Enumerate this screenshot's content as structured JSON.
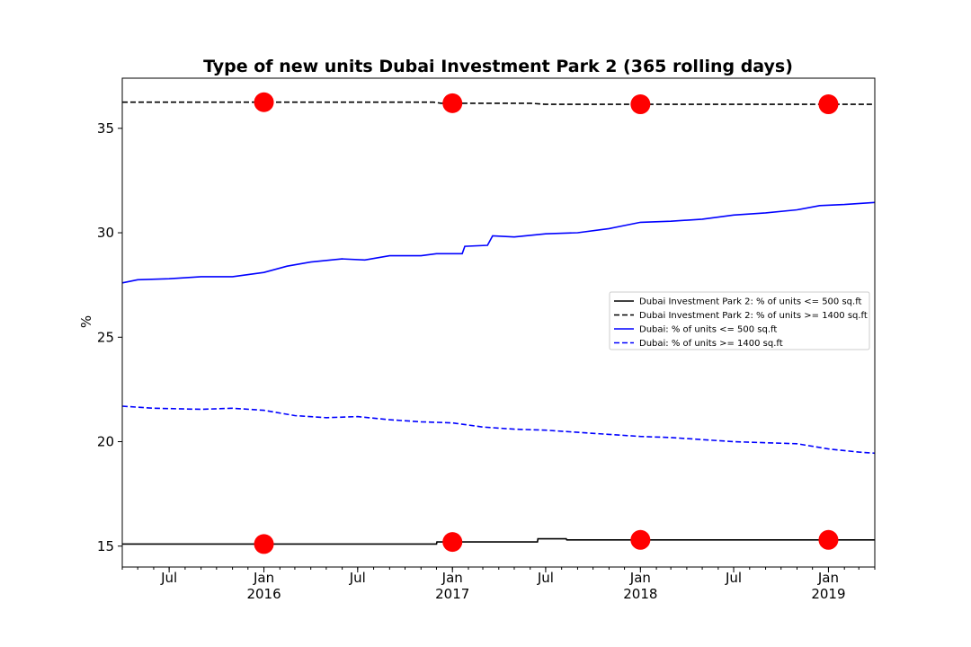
{
  "chart_data": {
    "type": "line",
    "title": "Type of new units Dubai Investment Park 2 (365 rolling days)",
    "xlabel": "",
    "ylabel": "%",
    "xlim": [
      "2015-04-01",
      "2019-04-01"
    ],
    "ylim": [
      14.0,
      37.4
    ],
    "yticks": [
      15,
      20,
      25,
      30,
      35
    ],
    "xticks": [
      {
        "date": "2015-07-01",
        "label": "Jul",
        "sublabel": ""
      },
      {
        "date": "2016-01-01",
        "label": "Jan",
        "sublabel": "2016"
      },
      {
        "date": "2016-07-01",
        "label": "Jul",
        "sublabel": ""
      },
      {
        "date": "2017-01-01",
        "label": "Jan",
        "sublabel": "2017"
      },
      {
        "date": "2017-07-01",
        "label": "Jul",
        "sublabel": ""
      },
      {
        "date": "2018-01-01",
        "label": "Jan",
        "sublabel": "2018"
      },
      {
        "date": "2018-07-01",
        "label": "Jul",
        "sublabel": ""
      },
      {
        "date": "2019-01-01",
        "label": "Jan",
        "sublabel": "2019"
      }
    ],
    "grid": false,
    "legend_position": "center-right",
    "series": [
      {
        "name": "Dubai Investment Park 2: % of units <= 500 sq.ft",
        "color": "#000000",
        "style": "solid",
        "points": [
          [
            "2015-04-01",
            15.1
          ],
          [
            "2016-12-01",
            15.1
          ],
          [
            "2016-12-02",
            15.2
          ],
          [
            "2017-06-15",
            15.2
          ],
          [
            "2017-06-16",
            15.35
          ],
          [
            "2017-08-10",
            15.35
          ],
          [
            "2017-08-11",
            15.3
          ],
          [
            "2019-04-01",
            15.3
          ]
        ]
      },
      {
        "name": "Dubai Investment Park 2: % of units >= 1400 sq.ft",
        "color": "#000000",
        "style": "dashed",
        "points": [
          [
            "2015-04-01",
            36.25
          ],
          [
            "2016-11-25",
            36.25
          ],
          [
            "2016-12-10",
            36.2
          ],
          [
            "2017-06-01",
            36.2
          ],
          [
            "2017-07-01",
            36.15
          ],
          [
            "2019-04-01",
            36.15
          ]
        ]
      },
      {
        "name": "Dubai: % of units <= 500 sq.ft",
        "color": "#0000ff",
        "style": "solid",
        "points": [
          [
            "2015-04-01",
            27.6
          ],
          [
            "2015-05-01",
            27.75
          ],
          [
            "2015-07-01",
            27.8
          ],
          [
            "2015-09-01",
            27.9
          ],
          [
            "2015-11-01",
            27.9
          ],
          [
            "2016-01-01",
            28.1
          ],
          [
            "2016-02-15",
            28.4
          ],
          [
            "2016-04-01",
            28.6
          ],
          [
            "2016-06-01",
            28.75
          ],
          [
            "2016-07-15",
            28.7
          ],
          [
            "2016-09-01",
            28.9
          ],
          [
            "2016-11-01",
            28.9
          ],
          [
            "2016-12-01",
            29.0
          ],
          [
            "2017-01-20",
            29.0
          ],
          [
            "2017-01-25",
            29.35
          ],
          [
            "2017-03-10",
            29.4
          ],
          [
            "2017-03-20",
            29.85
          ],
          [
            "2017-05-01",
            29.8
          ],
          [
            "2017-07-01",
            29.95
          ],
          [
            "2017-09-01",
            30.0
          ],
          [
            "2017-11-01",
            30.2
          ],
          [
            "2018-01-01",
            30.5
          ],
          [
            "2018-03-01",
            30.55
          ],
          [
            "2018-05-01",
            30.65
          ],
          [
            "2018-07-01",
            30.85
          ],
          [
            "2018-09-01",
            30.95
          ],
          [
            "2018-11-01",
            31.1
          ],
          [
            "2018-12-15",
            31.3
          ],
          [
            "2019-02-01",
            31.35
          ],
          [
            "2019-04-01",
            31.45
          ]
        ]
      },
      {
        "name": "Dubai: % of units >= 1400 sq.ft",
        "color": "#0000ff",
        "style": "dashed",
        "points": [
          [
            "2015-04-01",
            21.7
          ],
          [
            "2015-06-01",
            21.6
          ],
          [
            "2015-09-01",
            21.55
          ],
          [
            "2015-11-01",
            21.6
          ],
          [
            "2016-01-01",
            21.5
          ],
          [
            "2016-03-01",
            21.25
          ],
          [
            "2016-05-01",
            21.15
          ],
          [
            "2016-07-01",
            21.2
          ],
          [
            "2016-09-01",
            21.05
          ],
          [
            "2016-11-01",
            20.95
          ],
          [
            "2017-01-01",
            20.9
          ],
          [
            "2017-03-01",
            20.7
          ],
          [
            "2017-05-01",
            20.6
          ],
          [
            "2017-07-01",
            20.55
          ],
          [
            "2017-09-01",
            20.45
          ],
          [
            "2017-11-01",
            20.35
          ],
          [
            "2018-01-01",
            20.25
          ],
          [
            "2018-03-01",
            20.2
          ],
          [
            "2018-05-01",
            20.1
          ],
          [
            "2018-07-01",
            20.0
          ],
          [
            "2018-09-01",
            19.95
          ],
          [
            "2018-11-01",
            19.9
          ],
          [
            "2019-01-01",
            19.65
          ],
          [
            "2019-03-01",
            19.5
          ],
          [
            "2019-04-01",
            19.45
          ]
        ]
      }
    ],
    "markers": {
      "color": "#ff0000",
      "points": [
        [
          "2016-01-01",
          15.1
        ],
        [
          "2017-01-01",
          15.2
        ],
        [
          "2018-01-01",
          15.3
        ],
        [
          "2019-01-01",
          15.3
        ],
        [
          "2016-01-01",
          36.25
        ],
        [
          "2017-01-01",
          36.2
        ],
        [
          "2018-01-01",
          36.15
        ],
        [
          "2019-01-01",
          36.15
        ]
      ]
    }
  }
}
